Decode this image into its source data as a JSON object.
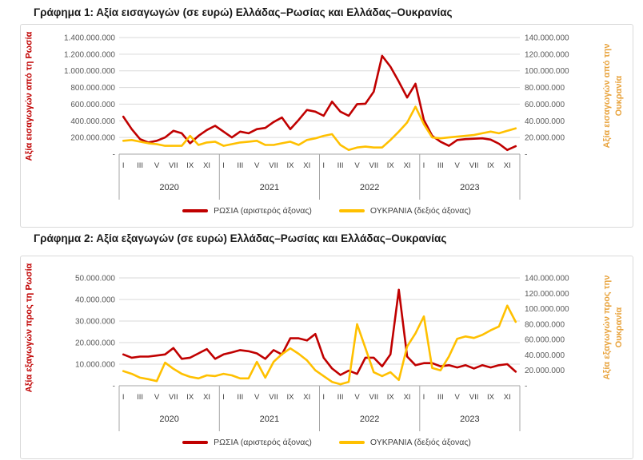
{
  "colors": {
    "russia_line": "#C00000",
    "ukraine_line": "#FFC000",
    "ukraine_axis_text": "#E8A33D",
    "gridline": "#D9D9D9",
    "axis_text": "#595959"
  },
  "chart_data": [
    {
      "type": "line",
      "title": "Γράφημα 1: Αξία εισαγωγών (σε ευρώ) Ελλάδας–Ρωσίας και Ελλάδας–Ουκρανίας",
      "units": "EUR",
      "left_axis": {
        "label": "Αξία εισαγωγών από τη Ρωσία",
        "range": [
          0,
          1400000000
        ],
        "tick_labels": [
          "1.400.000.000",
          "1.200.000.000",
          "1.000.000.000",
          "800.000.000",
          "600.000.000",
          "400.000.000",
          "200.000.000",
          "-"
        ],
        "grid": true
      },
      "right_axis": {
        "label": "Αξία εισαγωγών από την Ουκρανία",
        "range": [
          0,
          140000000
        ],
        "tick_labels": [
          "140.000.000",
          "120.000.000",
          "100.000.000",
          "80.000.000",
          "60.000.000",
          "40.000.000",
          "20.000.000",
          "-"
        ]
      },
      "x_axis": {
        "years": [
          "2020",
          "2021",
          "2022",
          "2023"
        ],
        "month_tick_labels": [
          "I",
          "III",
          "V",
          "VII",
          "IX",
          "XI"
        ]
      },
      "legend_position": "bottom",
      "series": [
        {
          "name": "ΡΩΣΙΑ (αριστερός άξονας)",
          "axis": "left",
          "color": "#C00000",
          "data_name": "russia-line-series",
          "values_millions": [
            450,
            300,
            180,
            140,
            160,
            200,
            280,
            250,
            130,
            220,
            290,
            340,
            270,
            200,
            270,
            250,
            300,
            315,
            385,
            440,
            300,
            410,
            530,
            510,
            460,
            630,
            510,
            460,
            600,
            605,
            750,
            1180,
            1050,
            870,
            680,
            845,
            410,
            220,
            150,
            100,
            170,
            180,
            185,
            190,
            175,
            125,
            50,
            95
          ]
        },
        {
          "name": "ΟΥΚΡΑΝΙΑ (δεξιός άξονας)",
          "axis": "right",
          "color": "#FFC000",
          "data_name": "ukraine-line-series",
          "values_millions": [
            16,
            17,
            15,
            13,
            12,
            10,
            10,
            10,
            22,
            11,
            14,
            15,
            10,
            12,
            14,
            15,
            16,
            11,
            11,
            13,
            15,
            11,
            17,
            19,
            22,
            24,
            11,
            5,
            8,
            9,
            8,
            8,
            17,
            27,
            38,
            57,
            36,
            20,
            19,
            20,
            21,
            22,
            23,
            25,
            27,
            25,
            28,
            31
          ]
        }
      ]
    },
    {
      "type": "line",
      "title": "Γράφημα 2: Αξία εξαγωγών (σε ευρώ) Ελλάδας–Ρωσίας και Ελλάδας–Ουκρανίας",
      "units": "EUR",
      "left_axis": {
        "label": "Αξία εξαγωγών προς τη Ρωσία",
        "range": [
          0,
          50000000
        ],
        "tick_labels": [
          "50.000.000",
          "40.000.000",
          "30.000.000",
          "20.000.000",
          "10.000.000",
          "-"
        ],
        "grid": true
      },
      "right_axis": {
        "label": "Αξία εξαγωγών προς την Ουκρανία",
        "range": [
          0,
          140000000
        ],
        "tick_labels": [
          "140.000.000",
          "120.000.000",
          "100.000.000",
          "80.000.000",
          "60.000.000",
          "40.000.000",
          "20.000.000",
          "-"
        ]
      },
      "x_axis": {
        "years": [
          "2020",
          "2021",
          "2022",
          "2023"
        ],
        "month_tick_labels": [
          "I",
          "III",
          "V",
          "VII",
          "IX",
          "XI"
        ]
      },
      "legend_position": "bottom",
      "series": [
        {
          "name": "ΡΩΣΙΑ (αριστερός άξονας)",
          "axis": "left",
          "color": "#C00000",
          "data_name": "russia-line-series",
          "values_millions": [
            14.5,
            13,
            13.5,
            13.5,
            14,
            14.5,
            17.5,
            12.5,
            13,
            15,
            17,
            12.5,
            14.5,
            15.5,
            16.5,
            16,
            15,
            12.5,
            16.5,
            14.5,
            22,
            22,
            21,
            24,
            13,
            8,
            5,
            7,
            5.5,
            13,
            13,
            9,
            14.5,
            44.5,
            13.5,
            9.5,
            10.5,
            10.5,
            9,
            9.5,
            8.5,
            9.5,
            8,
            9.5,
            8.5,
            9.5,
            10,
            6.5
          ]
        },
        {
          "name": "ΟΥΚΡΑΝΙΑ (δεξιός άξονας)",
          "axis": "right",
          "color": "#FFC000",
          "data_name": "ukraine-line-series",
          "values_millions": [
            19,
            15.5,
            10.5,
            8.5,
            6,
            30,
            22,
            15.5,
            11.5,
            9.5,
            13.5,
            12.5,
            15.5,
            13.5,
            9.5,
            9.5,
            31,
            10.5,
            31,
            41,
            48.5,
            41.5,
            33,
            20,
            12.5,
            5,
            2,
            5,
            80,
            49,
            17.5,
            12.5,
            17.5,
            7.5,
            51,
            68,
            90,
            23,
            20,
            38,
            61,
            64,
            62,
            66,
            72,
            77,
            104,
            83
          ]
        }
      ]
    }
  ]
}
